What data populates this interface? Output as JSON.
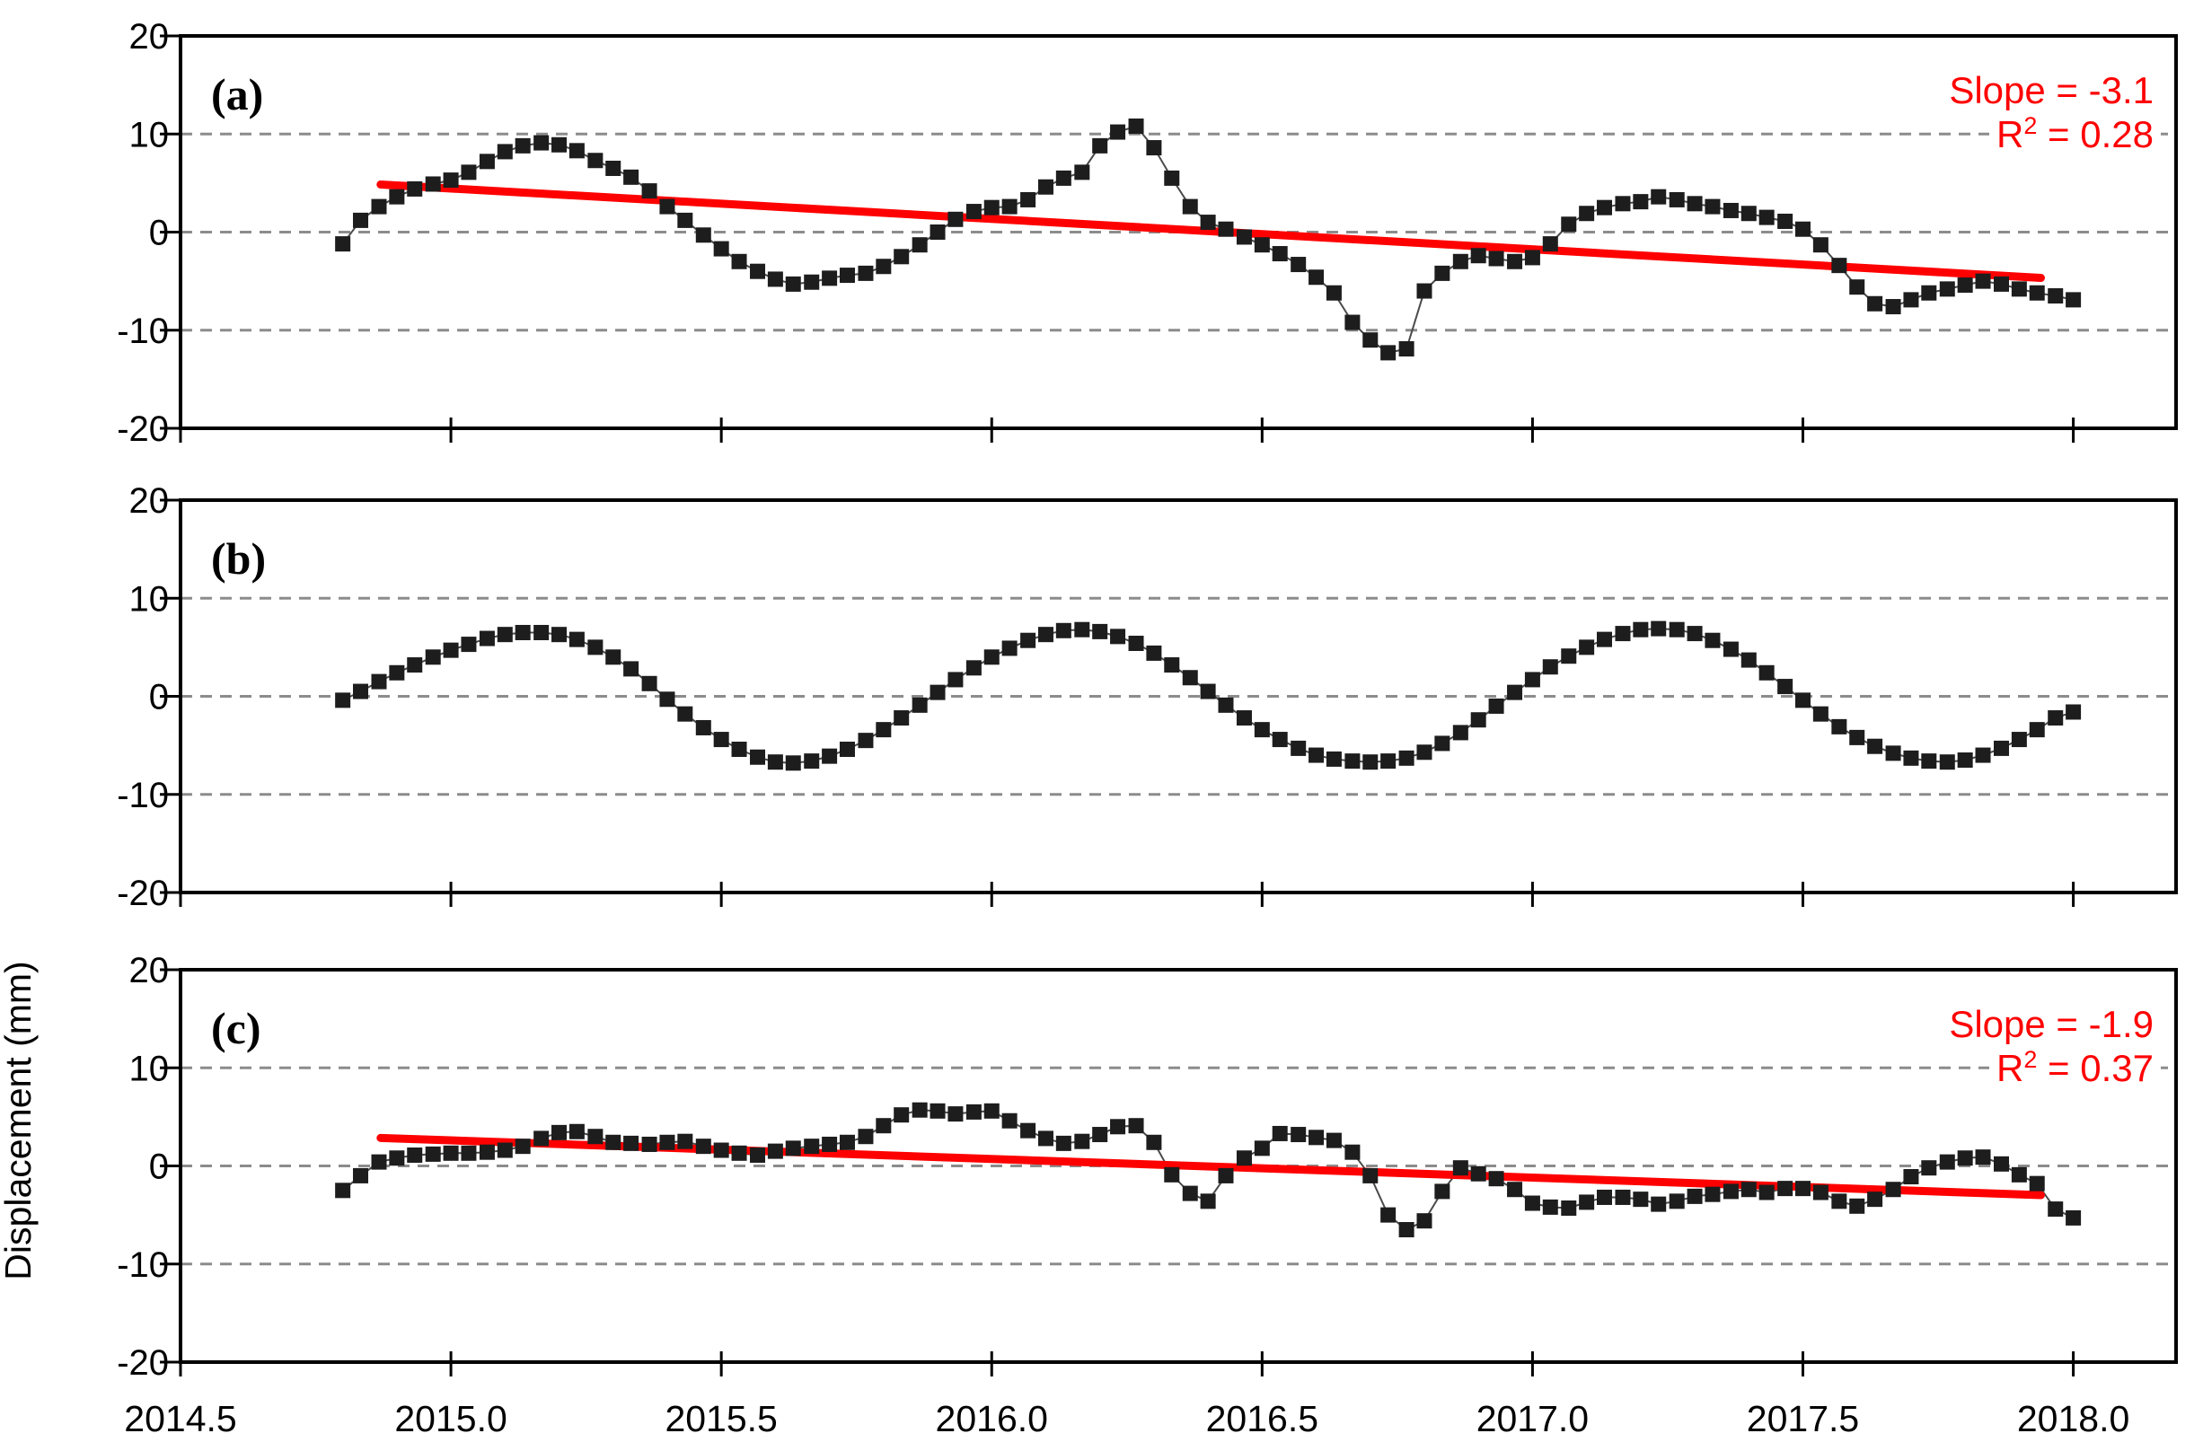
{
  "figure": {
    "ylabel": "Displacement (mm)",
    "background": "#ffffff"
  },
  "colors": {
    "marker": "#1d1d1d",
    "connector": "#4a4a4a",
    "trend": "#ff0000",
    "grid": "#8c8c8c",
    "frame": "#000000",
    "annotation": "#ff0000",
    "text": "#000000"
  },
  "chart_data": {
    "type": "line",
    "title": "",
    "xlabel": "",
    "ylabel": "Displacement (mm)",
    "axes": {
      "xlim": [
        2014.5,
        2018.19
      ],
      "ylim": [
        -20,
        20
      ],
      "xticks": [
        2014.5,
        2015.0,
        2015.5,
        2016.0,
        2016.5,
        2017.0,
        2017.5,
        2018.0
      ],
      "xtick_labels": [
        "2014.5",
        "2015.0",
        "2015.5",
        "2016.0",
        "2016.5",
        "2017.0",
        "2017.5",
        "2018.0"
      ],
      "yticks": [
        20,
        10,
        0,
        -10,
        -20
      ],
      "ytick_labels": [
        "20",
        "10",
        "0",
        "-10",
        "-20"
      ],
      "gridlines_y": [
        10,
        0,
        -10
      ],
      "grid_style": "dashed",
      "legend": "none"
    },
    "x": [
      2014.8,
      2014.833,
      2014.867,
      2014.9,
      2014.933,
      2014.967,
      2015.0,
      2015.033,
      2015.067,
      2015.1,
      2015.133,
      2015.167,
      2015.2,
      2015.233,
      2015.267,
      2015.3,
      2015.333,
      2015.367,
      2015.4,
      2015.433,
      2015.467,
      2015.5,
      2015.533,
      2015.567,
      2015.6,
      2015.633,
      2015.667,
      2015.7,
      2015.733,
      2015.767,
      2015.8,
      2015.833,
      2015.867,
      2015.9,
      2015.933,
      2015.967,
      2016.0,
      2016.033,
      2016.067,
      2016.1,
      2016.133,
      2016.167,
      2016.2,
      2016.233,
      2016.267,
      2016.3,
      2016.333,
      2016.367,
      2016.4,
      2016.433,
      2016.467,
      2016.5,
      2016.533,
      2016.567,
      2016.6,
      2016.633,
      2016.667,
      2016.7,
      2016.733,
      2016.767,
      2016.8,
      2016.833,
      2016.867,
      2016.9,
      2016.933,
      2016.967,
      2017.0,
      2017.033,
      2017.067,
      2017.1,
      2017.133,
      2017.167,
      2017.2,
      2017.233,
      2017.267,
      2017.3,
      2017.333,
      2017.367,
      2017.4,
      2017.433,
      2017.467,
      2017.5,
      2017.533,
      2017.567,
      2017.6,
      2017.633,
      2017.667,
      2017.7,
      2017.733,
      2017.767,
      2017.8,
      2017.833,
      2017.867,
      2017.9,
      2017.933,
      2017.967,
      2018.0
    ],
    "series": [
      {
        "name": "a",
        "panel_label": "(a)",
        "values": [
          -1.2,
          1.2,
          2.6,
          3.6,
          4.4,
          4.9,
          5.3,
          6.1,
          7.2,
          8.2,
          8.8,
          9.1,
          8.9,
          8.3,
          7.3,
          6.5,
          5.6,
          4.2,
          2.6,
          1.2,
          -0.3,
          -1.7,
          -3.0,
          -4.0,
          -4.8,
          -5.3,
          -5.1,
          -4.7,
          -4.4,
          -4.2,
          -3.5,
          -2.5,
          -1.3,
          0.0,
          1.3,
          2.1,
          2.5,
          2.6,
          3.3,
          4.6,
          5.5,
          6.1,
          8.8,
          10.2,
          10.8,
          8.6,
          5.5,
          2.6,
          1.0,
          0.3,
          -0.5,
          -1.3,
          -2.2,
          -3.3,
          -4.6,
          -6.2,
          -9.2,
          -11.0,
          -12.3,
          -11.9,
          -6.0,
          -4.2,
          -3.0,
          -2.4,
          -2.7,
          -3.0,
          -2.6,
          -1.2,
          0.8,
          1.9,
          2.5,
          2.9,
          3.1,
          3.6,
          3.3,
          2.9,
          2.6,
          2.2,
          1.9,
          1.5,
          1.1,
          0.3,
          -1.3,
          -3.4,
          -5.6,
          -7.3,
          -7.6,
          -6.9,
          -6.2,
          -5.8,
          -5.4,
          -5.0,
          -5.3,
          -5.8,
          -6.2,
          -6.5,
          -6.9
        ],
        "trend": {
          "slope": -3.1,
          "r2": 0.28,
          "x": [
            2014.87,
            2017.94
          ],
          "y": [
            4.85,
            -4.67
          ]
        },
        "annotation": {
          "slope_text": "Slope = -3.1",
          "r2_base": "R",
          "r2_sup": "2",
          "r2_rest": " = 0.28"
        }
      },
      {
        "name": "b",
        "panel_label": "(b)",
        "values": [
          -0.4,
          0.5,
          1.5,
          2.4,
          3.2,
          4.0,
          4.7,
          5.3,
          5.9,
          6.3,
          6.5,
          6.5,
          6.3,
          5.8,
          5.0,
          4.0,
          2.8,
          1.3,
          -0.3,
          -1.8,
          -3.2,
          -4.4,
          -5.4,
          -6.2,
          -6.7,
          -6.8,
          -6.6,
          -6.1,
          -5.4,
          -4.5,
          -3.4,
          -2.2,
          -0.9,
          0.4,
          1.7,
          2.9,
          4.0,
          4.9,
          5.7,
          6.3,
          6.7,
          6.8,
          6.6,
          6.1,
          5.4,
          4.4,
          3.2,
          1.9,
          0.5,
          -0.9,
          -2.2,
          -3.4,
          -4.4,
          -5.3,
          -6.0,
          -6.4,
          -6.6,
          -6.7,
          -6.6,
          -6.3,
          -5.7,
          -4.8,
          -3.7,
          -2.4,
          -1.0,
          0.4,
          1.7,
          3.0,
          4.1,
          5.0,
          5.8,
          6.4,
          6.8,
          6.9,
          6.8,
          6.4,
          5.7,
          4.8,
          3.7,
          2.4,
          1.0,
          -0.4,
          -1.8,
          -3.1,
          -4.2,
          -5.1,
          -5.8,
          -6.3,
          -6.6,
          -6.7,
          -6.5,
          -6.0,
          -5.3,
          -4.4,
          -3.4,
          -2.2,
          -1.6
        ],
        "trend": null,
        "annotation": null
      },
      {
        "name": "c",
        "panel_label": "(c)",
        "values": [
          -2.5,
          -1.0,
          0.4,
          0.8,
          1.1,
          1.2,
          1.3,
          1.3,
          1.4,
          1.6,
          2.0,
          2.8,
          3.4,
          3.5,
          3.0,
          2.4,
          2.3,
          2.2,
          2.4,
          2.5,
          2.0,
          1.6,
          1.3,
          1.1,
          1.5,
          1.8,
          2.0,
          2.2,
          2.4,
          3.0,
          4.1,
          5.2,
          5.7,
          5.6,
          5.3,
          5.5,
          5.6,
          4.6,
          3.6,
          2.8,
          2.3,
          2.5,
          3.2,
          4.0,
          4.1,
          2.4,
          -0.9,
          -2.8,
          -3.6,
          -1.0,
          0.8,
          1.8,
          3.3,
          3.2,
          2.9,
          2.6,
          1.4,
          -1.0,
          -5.0,
          -6.5,
          -5.6,
          -2.6,
          -0.2,
          -0.8,
          -1.3,
          -2.4,
          -3.8,
          -4.2,
          -4.3,
          -3.7,
          -3.2,
          -3.2,
          -3.4,
          -3.9,
          -3.6,
          -3.1,
          -2.9,
          -2.6,
          -2.4,
          -2.7,
          -2.3,
          -2.3,
          -2.7,
          -3.6,
          -4.1,
          -3.4,
          -2.4,
          -1.1,
          -0.2,
          0.4,
          0.8,
          0.9,
          0.2,
          -0.9,
          -1.8,
          -4.4,
          -5.3
        ],
        "trend": {
          "slope": -1.9,
          "r2": 0.37,
          "x": [
            2014.87,
            2017.94
          ],
          "y": [
            2.85,
            -2.98
          ]
        },
        "annotation": {
          "slope_text": "Slope = -1.9",
          "r2_base": "R",
          "r2_sup": "2",
          "r2_rest": " = 0.37"
        }
      }
    ]
  }
}
